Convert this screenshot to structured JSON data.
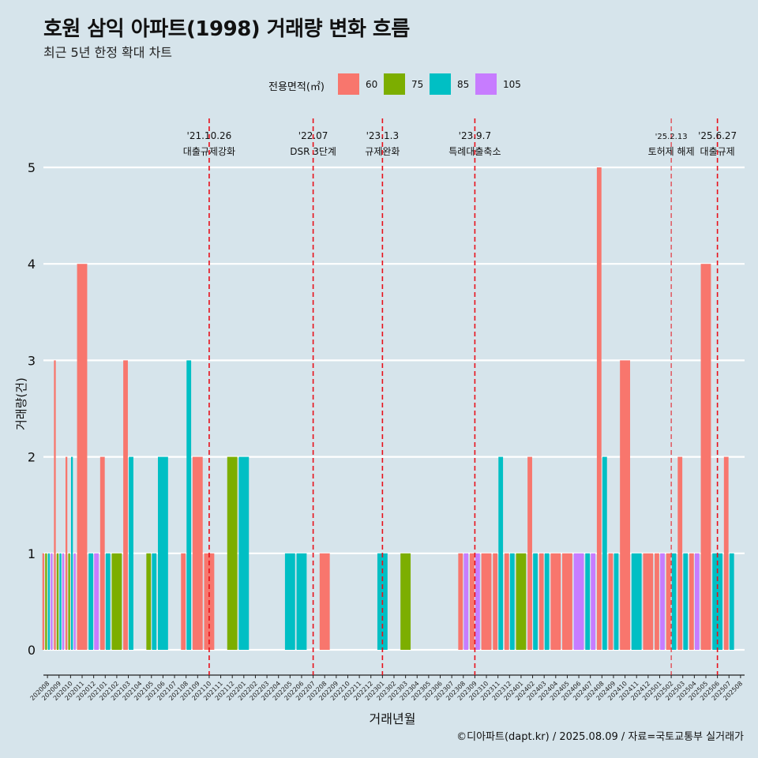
{
  "header": {
    "title": "호원 삼익 아파트(1998) 거래량 변화 흐름",
    "subtitle": "최근 5년 한정 확대 차트"
  },
  "legend": {
    "title": "전용면적(㎡)",
    "items": [
      {
        "label": "60",
        "color": "#F8766D"
      },
      {
        "label": "75",
        "color": "#7CAE00"
      },
      {
        "label": "85",
        "color": "#00BFC4"
      },
      {
        "label": "105",
        "color": "#C77CFF"
      }
    ]
  },
  "caption": "©디아파트(dapt.kr) / 2025.08.09 / 자료=국토교통부 실거래가",
  "chart_data": {
    "type": "bar",
    "xlabel": "거래년월",
    "ylabel": "거래량(건)",
    "ylim": [
      0,
      5
    ],
    "yticks": [
      "0",
      "1",
      "2",
      "3",
      "4",
      "5"
    ],
    "grid": "horizontal",
    "legend_position": "top",
    "categories": [
      "202008",
      "202009",
      "202010",
      "202011",
      "202012",
      "202101",
      "202102",
      "202103",
      "202104",
      "202105",
      "202106",
      "202107",
      "202108",
      "202109",
      "202110",
      "202111",
      "202112",
      "202201",
      "202202",
      "202203",
      "202204",
      "202205",
      "202206",
      "202207",
      "202208",
      "202209",
      "202210",
      "202211",
      "202212",
      "202301",
      "202302",
      "202303",
      "202304",
      "202305",
      "202306",
      "202307",
      "202308",
      "202309",
      "202310",
      "202311",
      "202312",
      "202401",
      "202402",
      "202403",
      "202404",
      "202405",
      "202406",
      "202407",
      "202408",
      "202409",
      "202410",
      "202411",
      "202412",
      "202501",
      "202502",
      "202503",
      "202504",
      "202505",
      "202506",
      "202507",
      "202508"
    ],
    "groups": [
      {
        "month": "202008",
        "bars": [
          {
            "size": "60",
            "value": 1
          },
          {
            "size": "75",
            "value": 1
          },
          {
            "size": "85",
            "value": 1
          },
          {
            "size": "105",
            "value": 1
          }
        ]
      },
      {
        "month": "202009",
        "bars": [
          {
            "size": "60",
            "value": 3
          },
          {
            "size": "75",
            "value": 1
          },
          {
            "size": "85",
            "value": 1
          },
          {
            "size": "105",
            "value": 1
          }
        ]
      },
      {
        "month": "202010",
        "bars": [
          {
            "size": "60",
            "value": 2
          },
          {
            "size": "75",
            "value": 1
          },
          {
            "size": "85",
            "value": 2
          },
          {
            "size": "105",
            "value": 1
          }
        ]
      },
      {
        "month": "202011",
        "bars": [
          {
            "size": "60",
            "value": 4
          }
        ]
      },
      {
        "month": "202012",
        "bars": [
          {
            "size": "85",
            "value": 1
          },
          {
            "size": "105",
            "value": 1
          }
        ]
      },
      {
        "month": "202101",
        "bars": [
          {
            "size": "60",
            "value": 2
          },
          {
            "size": "85",
            "value": 1
          }
        ]
      },
      {
        "month": "202102",
        "bars": [
          {
            "size": "75",
            "value": 1
          }
        ]
      },
      {
        "month": "202103",
        "bars": [
          {
            "size": "60",
            "value": 3
          },
          {
            "size": "85",
            "value": 2
          }
        ]
      },
      {
        "month": "202105",
        "bars": [
          {
            "size": "75",
            "value": 1
          },
          {
            "size": "85",
            "value": 1
          }
        ]
      },
      {
        "month": "202106",
        "bars": [
          {
            "size": "85",
            "value": 2
          }
        ]
      },
      {
        "month": "202108",
        "bars": [
          {
            "size": "60",
            "value": 1
          },
          {
            "size": "85",
            "value": 3
          }
        ]
      },
      {
        "month": "202109",
        "bars": [
          {
            "size": "60",
            "value": 2
          }
        ]
      },
      {
        "month": "202110",
        "bars": [
          {
            "size": "60",
            "value": 1
          }
        ]
      },
      {
        "month": "202112",
        "bars": [
          {
            "size": "75",
            "value": 2
          }
        ]
      },
      {
        "month": "202201",
        "bars": [
          {
            "size": "85",
            "value": 2
          }
        ]
      },
      {
        "month": "202205",
        "bars": [
          {
            "size": "85",
            "value": 1
          }
        ]
      },
      {
        "month": "202206",
        "bars": [
          {
            "size": "85",
            "value": 1
          }
        ]
      },
      {
        "month": "202208",
        "bars": [
          {
            "size": "60",
            "value": 1
          }
        ]
      },
      {
        "month": "202301",
        "bars": [
          {
            "size": "85",
            "value": 1
          }
        ]
      },
      {
        "month": "202303",
        "bars": [
          {
            "size": "75",
            "value": 1
          }
        ]
      },
      {
        "month": "202308",
        "bars": [
          {
            "size": "60",
            "value": 1
          },
          {
            "size": "105",
            "value": 1
          }
        ]
      },
      {
        "month": "202309",
        "bars": [
          {
            "size": "60",
            "value": 1
          },
          {
            "size": "105",
            "value": 1
          }
        ]
      },
      {
        "month": "202310",
        "bars": [
          {
            "size": "60",
            "value": 1
          }
        ]
      },
      {
        "month": "202311",
        "bars": [
          {
            "size": "60",
            "value": 1
          },
          {
            "size": "85",
            "value": 2
          }
        ]
      },
      {
        "month": "202312",
        "bars": [
          {
            "size": "60",
            "value": 1
          },
          {
            "size": "85",
            "value": 1
          }
        ]
      },
      {
        "month": "202401",
        "bars": [
          {
            "size": "75",
            "value": 1
          }
        ]
      },
      {
        "month": "202402",
        "bars": [
          {
            "size": "60",
            "value": 2
          },
          {
            "size": "85",
            "value": 1
          }
        ]
      },
      {
        "month": "202403",
        "bars": [
          {
            "size": "60",
            "value": 1
          },
          {
            "size": "85",
            "value": 1
          }
        ]
      },
      {
        "month": "202404",
        "bars": [
          {
            "size": "60",
            "value": 1
          }
        ]
      },
      {
        "month": "202405",
        "bars": [
          {
            "size": "60",
            "value": 1
          }
        ]
      },
      {
        "month": "202406",
        "bars": [
          {
            "size": "105",
            "value": 1
          }
        ]
      },
      {
        "month": "202407",
        "bars": [
          {
            "size": "85",
            "value": 1
          },
          {
            "size": "105",
            "value": 1
          }
        ]
      },
      {
        "month": "202408",
        "bars": [
          {
            "size": "60",
            "value": 5
          },
          {
            "size": "85",
            "value": 2
          }
        ]
      },
      {
        "month": "202409",
        "bars": [
          {
            "size": "60",
            "value": 1
          },
          {
            "size": "85",
            "value": 1
          }
        ]
      },
      {
        "month": "202410",
        "bars": [
          {
            "size": "60",
            "value": 3
          }
        ]
      },
      {
        "month": "202411",
        "bars": [
          {
            "size": "85",
            "value": 1
          }
        ]
      },
      {
        "month": "202412",
        "bars": [
          {
            "size": "60",
            "value": 1
          }
        ]
      },
      {
        "month": "202501",
        "bars": [
          {
            "size": "60",
            "value": 1
          },
          {
            "size": "105",
            "value": 1
          }
        ]
      },
      {
        "month": "202502",
        "bars": [
          {
            "size": "60",
            "value": 1
          },
          {
            "size": "85",
            "value": 1
          }
        ]
      },
      {
        "month": "202503",
        "bars": [
          {
            "size": "60",
            "value": 2
          },
          {
            "size": "85",
            "value": 1
          }
        ]
      },
      {
        "month": "202504",
        "bars": [
          {
            "size": "60",
            "value": 1
          },
          {
            "size": "105",
            "value": 1
          }
        ]
      },
      {
        "month": "202505",
        "bars": [
          {
            "size": "60",
            "value": 4
          }
        ]
      },
      {
        "month": "202506",
        "bars": [
          {
            "size": "85",
            "value": 1
          }
        ]
      },
      {
        "month": "202507",
        "bars": [
          {
            "size": "60",
            "value": 2
          },
          {
            "size": "85",
            "value": 1
          }
        ]
      }
    ],
    "annotations": [
      {
        "month": "202110",
        "date": "'21.10.26",
        "label": "대출규제강화"
      },
      {
        "month": "202207",
        "date": "'22.07",
        "label": "DSR 3단계"
      },
      {
        "month": "202301",
        "date": "'23.1.3",
        "label": "규제완화"
      },
      {
        "month": "202309",
        "date": "'23.9.7",
        "label": "특례대출축소"
      },
      {
        "month": "202502",
        "date": "'25.2.13",
        "label": "토허제 해제"
      },
      {
        "month": "202506",
        "date": "'25.6.27",
        "label": "대출규제"
      }
    ]
  }
}
